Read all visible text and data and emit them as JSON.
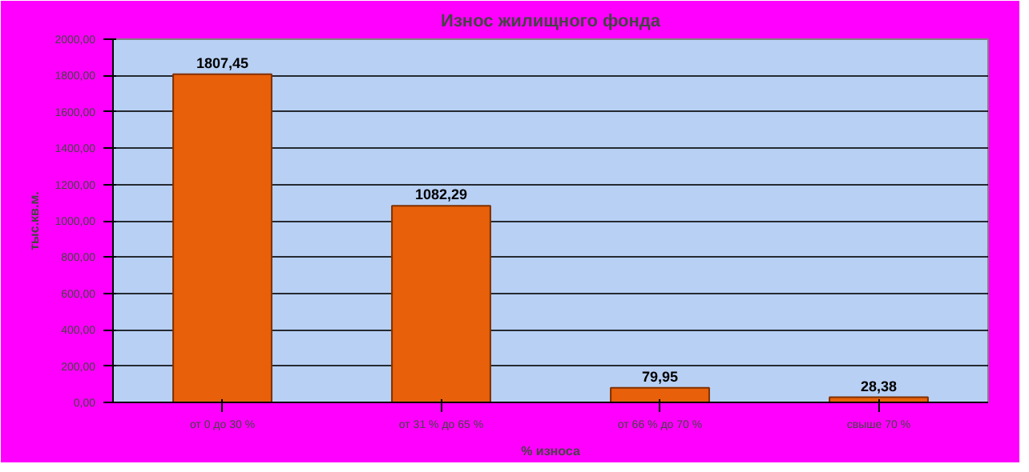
{
  "chart_data": {
    "type": "bar",
    "title": "Износ жилищного фонда",
    "xlabel": "% износа",
    "ylabel": "тыс.кв.м.",
    "categories": [
      "от 0 до 30 %",
      "от 31 % до 65 %",
      "от 66 % до 70 %",
      "свыше 70 %"
    ],
    "values": [
      1807.45,
      1082.29,
      79.95,
      28.38
    ],
    "color": "#e8600a",
    "value_labels": [
      "1807,45",
      "1082,29",
      "79,95",
      "28,38"
    ],
    "ylim": [
      0,
      2000
    ],
    "yticks": [
      {
        "value": 0,
        "label": "0,00"
      },
      {
        "value": 200,
        "label": "200,00"
      },
      {
        "value": 400,
        "label": "400,00"
      },
      {
        "value": 600,
        "label": "600,00"
      },
      {
        "value": 800,
        "label": "800,00"
      },
      {
        "value": 1000,
        "label": "1000,00"
      },
      {
        "value": 1200,
        "label": "1200,00"
      },
      {
        "value": 1400,
        "label": "1400,00"
      },
      {
        "value": 1600,
        "label": "1600,00"
      },
      {
        "value": 1800,
        "label": "1800,00"
      },
      {
        "value": 2000,
        "label": "2000,00"
      }
    ],
    "grid": "y"
  }
}
